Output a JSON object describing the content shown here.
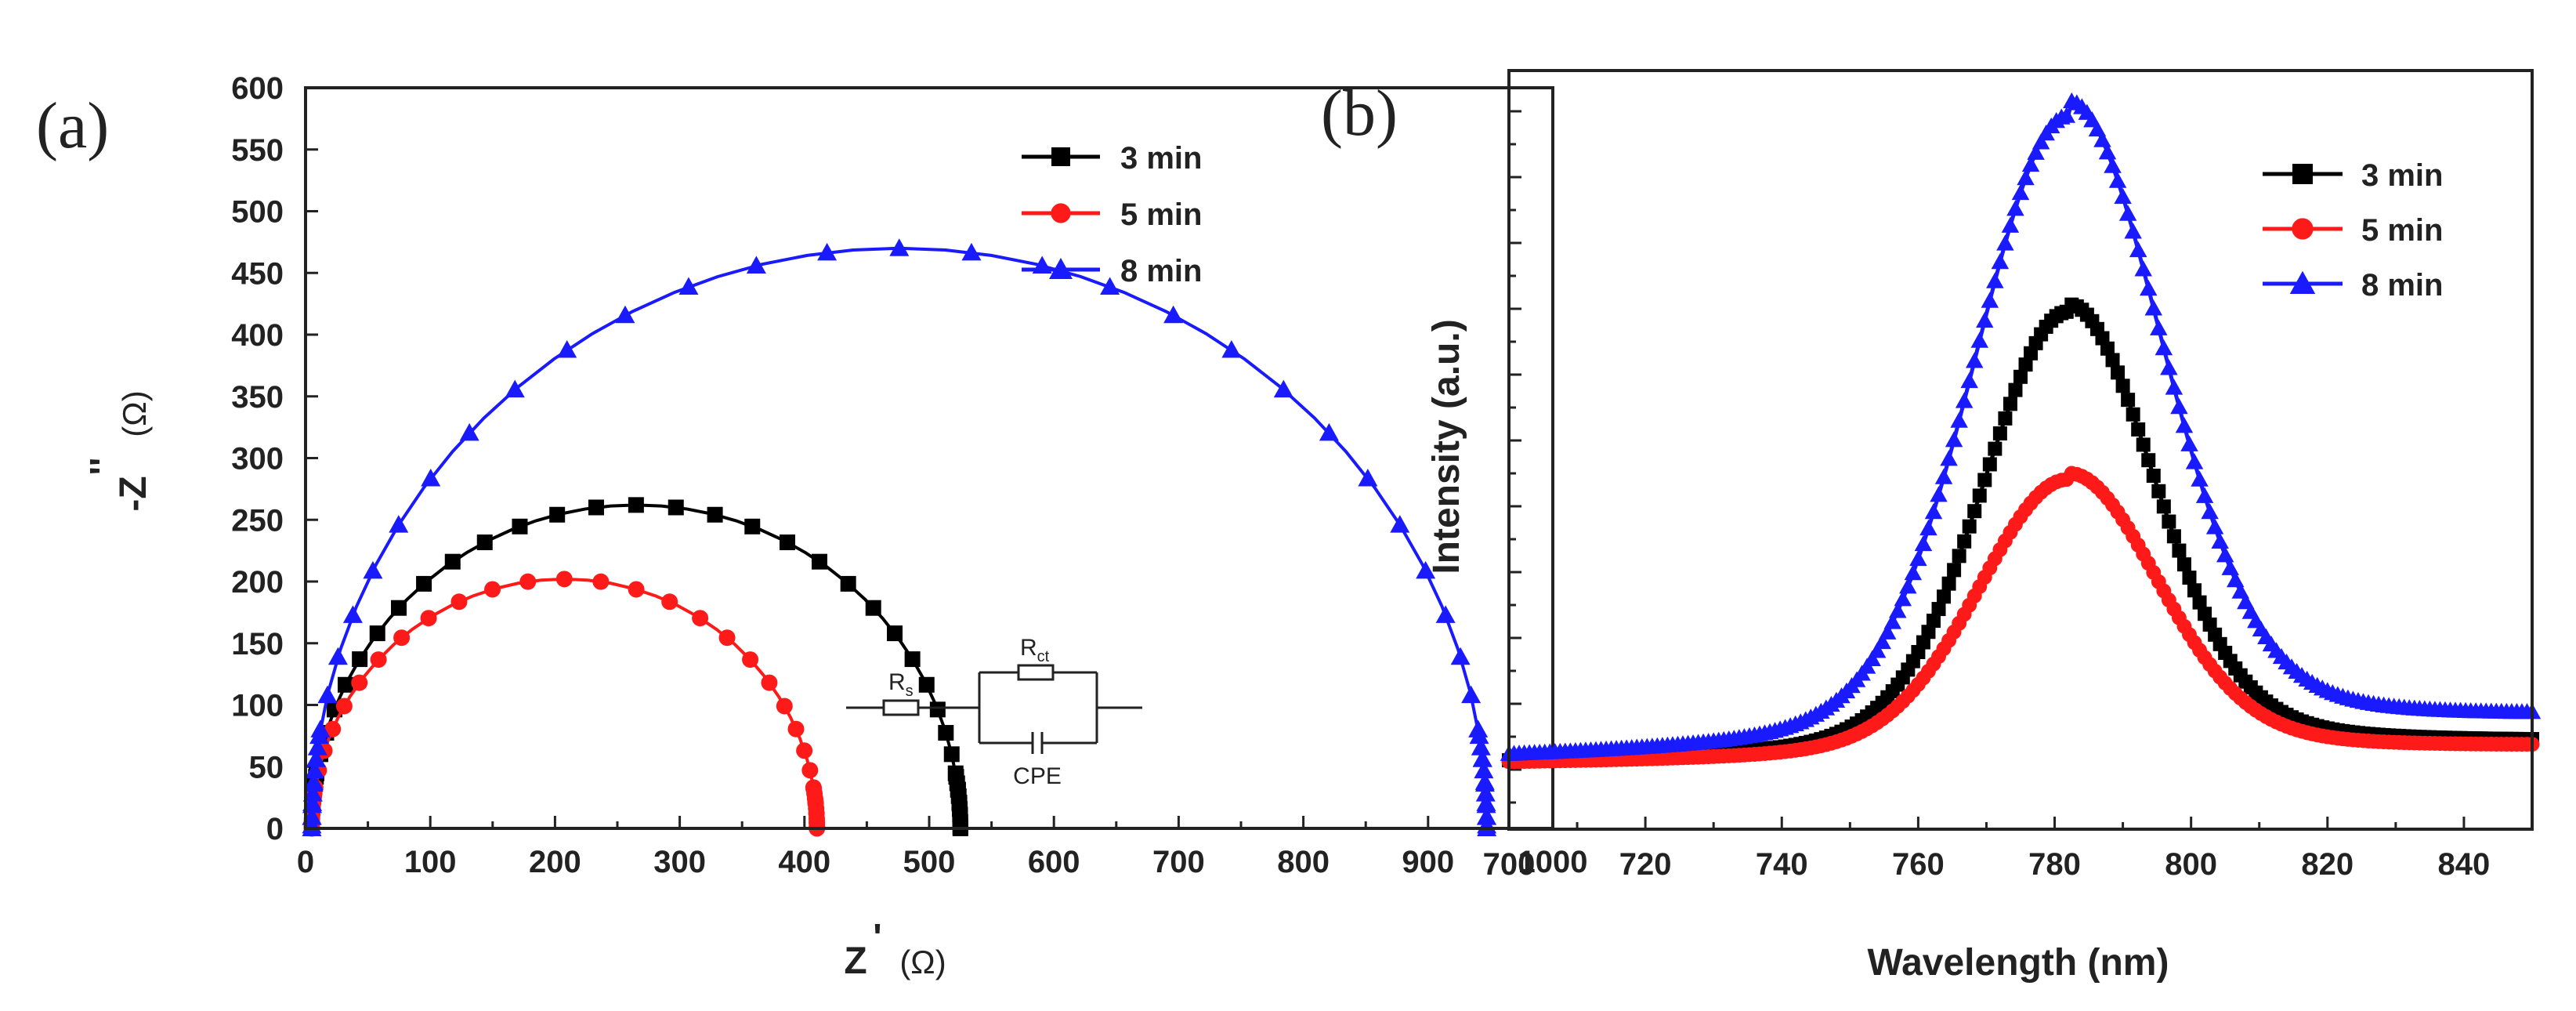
{
  "panels": {
    "a": {
      "label": "(a)",
      "xlabel": "Z",
      "xlabel_prime": "'",
      "xlabel_unit": "(Ω)",
      "ylabel": "-Z",
      "ylabel_prime": "''",
      "ylabel_unit": "(Ω)"
    },
    "b": {
      "label": "(b)",
      "xlabel": "Wavelength (nm)",
      "ylabel": "Intensity (a.u.)"
    }
  },
  "circuit": {
    "rs_label": "R",
    "rs_sub": "s",
    "rct_label": "R",
    "rct_sub": "ct",
    "cpe_label": "CPE"
  },
  "chart_data": [
    {
      "type": "scatter",
      "panel": "a",
      "title": "",
      "xlabel": "Z'(Ω)",
      "ylabel": "-Z''(Ω)",
      "xlim": [
        0,
        1000
      ],
      "ylim": [
        0,
        600
      ],
      "xticks": [
        0,
        100,
        200,
        300,
        400,
        500,
        600,
        700,
        800,
        900,
        1000
      ],
      "yticks": [
        0,
        50,
        100,
        150,
        200,
        250,
        300,
        350,
        400,
        450,
        500,
        550,
        600
      ],
      "legend_position": "top-right",
      "series": [
        {
          "name": "3 min",
          "color": "#000000",
          "marker": "square",
          "rs": 5,
          "rct": 520,
          "peak": 262,
          "points": 40
        },
        {
          "name": "5 min",
          "color": "#ff1a1a",
          "marker": "circle",
          "rs": 5,
          "rct": 405,
          "peak": 202,
          "points": 34
        },
        {
          "name": "8 min",
          "color": "#1a1aff",
          "marker": "triangle",
          "rs": 5,
          "rct": 942,
          "peak": 470,
          "points": 40
        }
      ]
    },
    {
      "type": "line",
      "panel": "b",
      "title": "",
      "xlabel": "Wavelength (nm)",
      "ylabel": "Intensity (a.u.)",
      "xlim": [
        700,
        850
      ],
      "ylim": [
        -0.1,
        1.08
      ],
      "xticks": [
        700,
        720,
        740,
        760,
        780,
        800,
        820,
        840
      ],
      "y_tick_labels_shown": false,
      "legend_position": "top-right",
      "series": [
        {
          "name": "3 min",
          "color": "#000000",
          "marker": "square",
          "peak_x": 782,
          "peak_y": 0.7,
          "baseline": 0.0,
          "width": 19,
          "tail": 0.03
        },
        {
          "name": "5 min",
          "color": "#ff1a1a",
          "marker": "circle",
          "peak_x": 782,
          "peak_y": 0.44,
          "baseline": 0.0,
          "width": 20,
          "tail": 0.025
        },
        {
          "name": "8 min",
          "color": "#1a1aff",
          "marker": "triangle",
          "peak_x": 782,
          "peak_y": 1.0,
          "baseline": 0.005,
          "width": 21,
          "tail": 0.06
        }
      ]
    }
  ]
}
